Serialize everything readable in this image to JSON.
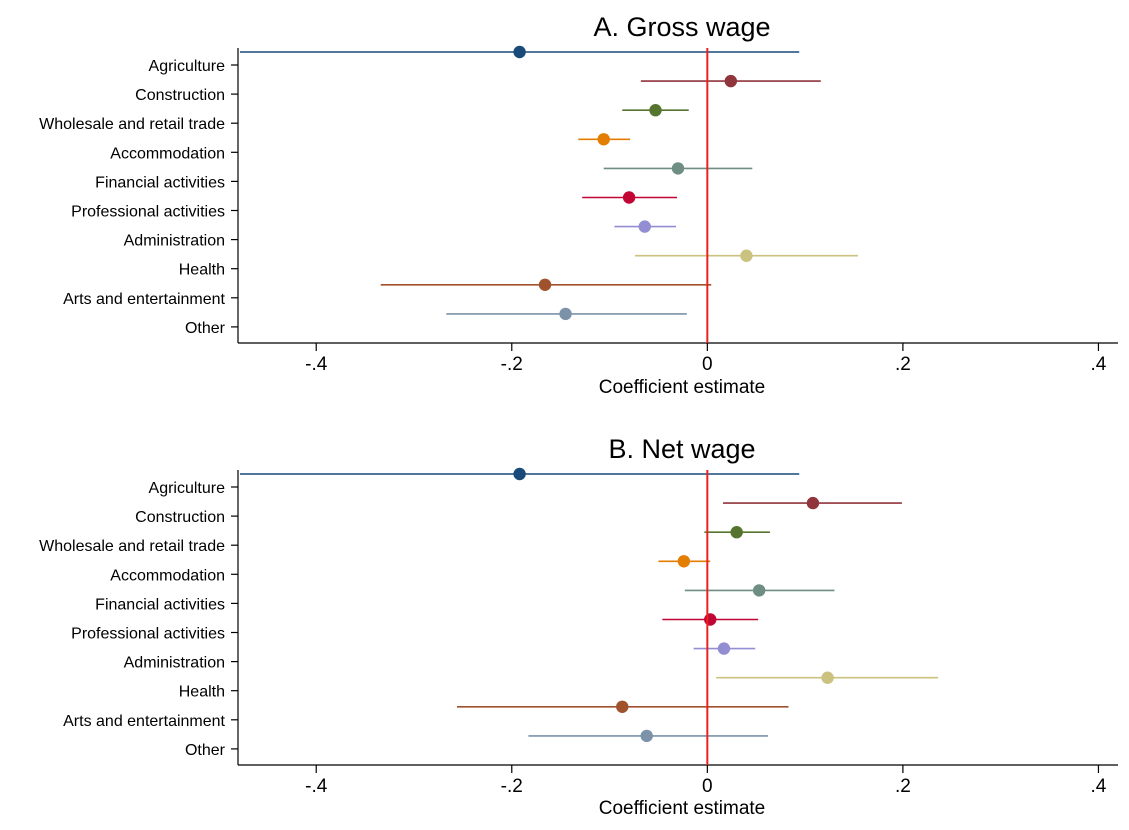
{
  "chart_data": [
    {
      "type": "scatter",
      "title": "A. Gross wage",
      "xlabel": "Coefficient estimate",
      "xlim": [
        -0.48,
        0.42
      ],
      "xticks": [
        -0.4,
        -0.2,
        0,
        0.2,
        0.4
      ],
      "xtick_labels": [
        "-.4",
        "-.2",
        "0",
        ".2",
        ".4"
      ],
      "reference_line": {
        "x": 0,
        "color": "#e8221f"
      },
      "categories": [
        "Agriculture",
        "Construction",
        "Wholesale and retail trade",
        "Accommodation",
        "Financial activities",
        "Professional activities",
        "Administration",
        "Health",
        "Arts and entertainment",
        "Other"
      ],
      "points": [
        {
          "category": "Agriculture",
          "estimate": -0.192,
          "ci_low": -0.478,
          "ci_high": 0.094,
          "color": "#1a4a7a"
        },
        {
          "category": "Construction",
          "estimate": 0.024,
          "ci_low": -0.068,
          "ci_high": 0.116,
          "color": "#90353b"
        },
        {
          "category": "Wholesale and retail trade",
          "estimate": -0.053,
          "ci_low": -0.087,
          "ci_high": -0.019,
          "color": "#55752f"
        },
        {
          "category": "Accommodation",
          "estimate": -0.106,
          "ci_low": -0.132,
          "ci_high": -0.079,
          "color": "#e37e00"
        },
        {
          "category": "Financial activities",
          "estimate": -0.03,
          "ci_low": -0.106,
          "ci_high": 0.046,
          "color": "#6e8e84"
        },
        {
          "category": "Professional activities",
          "estimate": -0.08,
          "ci_low": -0.128,
          "ci_high": -0.031,
          "color": "#c10534"
        },
        {
          "category": "Administration",
          "estimate": -0.064,
          "ci_low": -0.095,
          "ci_high": -0.032,
          "color": "#938dd2"
        },
        {
          "category": "Health",
          "estimate": 0.04,
          "ci_low": -0.074,
          "ci_high": 0.154,
          "color": "#cac27e"
        },
        {
          "category": "Arts and entertainment",
          "estimate": -0.166,
          "ci_low": -0.334,
          "ci_high": 0.004,
          "color": "#a0522d"
        },
        {
          "category": "Other",
          "estimate": -0.145,
          "ci_low": -0.267,
          "ci_high": -0.021,
          "color": "#7b92a8"
        }
      ]
    },
    {
      "type": "scatter",
      "title": "B. Net wage",
      "xlabel": "Coefficient estimate",
      "xlim": [
        -0.48,
        0.42
      ],
      "xticks": [
        -0.4,
        -0.2,
        0,
        0.2,
        0.4
      ],
      "xtick_labels": [
        "-.4",
        "-.2",
        "0",
        ".2",
        ".4"
      ],
      "reference_line": {
        "x": 0,
        "color": "#e8221f"
      },
      "categories": [
        "Agriculture",
        "Construction",
        "Wholesale and retail trade",
        "Accommodation",
        "Financial activities",
        "Professional activities",
        "Administration",
        "Health",
        "Arts and entertainment",
        "Other"
      ],
      "points": [
        {
          "category": "Agriculture",
          "estimate": -0.192,
          "ci_low": -0.478,
          "ci_high": 0.094,
          "color": "#1a4a7a"
        },
        {
          "category": "Construction",
          "estimate": 0.108,
          "ci_low": 0.016,
          "ci_high": 0.199,
          "color": "#90353b"
        },
        {
          "category": "Wholesale and retail trade",
          "estimate": 0.03,
          "ci_low": -0.003,
          "ci_high": 0.064,
          "color": "#55752f"
        },
        {
          "category": "Accommodation",
          "estimate": -0.024,
          "ci_low": -0.05,
          "ci_high": 0.003,
          "color": "#e37e00"
        },
        {
          "category": "Financial activities",
          "estimate": 0.053,
          "ci_low": -0.023,
          "ci_high": 0.13,
          "color": "#6e8e84"
        },
        {
          "category": "Professional activities",
          "estimate": 0.003,
          "ci_low": -0.046,
          "ci_high": 0.052,
          "color": "#c10534"
        },
        {
          "category": "Administration",
          "estimate": 0.017,
          "ci_low": -0.014,
          "ci_high": 0.049,
          "color": "#938dd2"
        },
        {
          "category": "Health",
          "estimate": 0.123,
          "ci_low": 0.009,
          "ci_high": 0.236,
          "color": "#cac27e"
        },
        {
          "category": "Arts and entertainment",
          "estimate": -0.087,
          "ci_low": -0.256,
          "ci_high": 0.083,
          "color": "#a0522d"
        },
        {
          "category": "Other",
          "estimate": -0.062,
          "ci_low": -0.183,
          "ci_high": 0.062,
          "color": "#7b92a8"
        }
      ]
    }
  ]
}
